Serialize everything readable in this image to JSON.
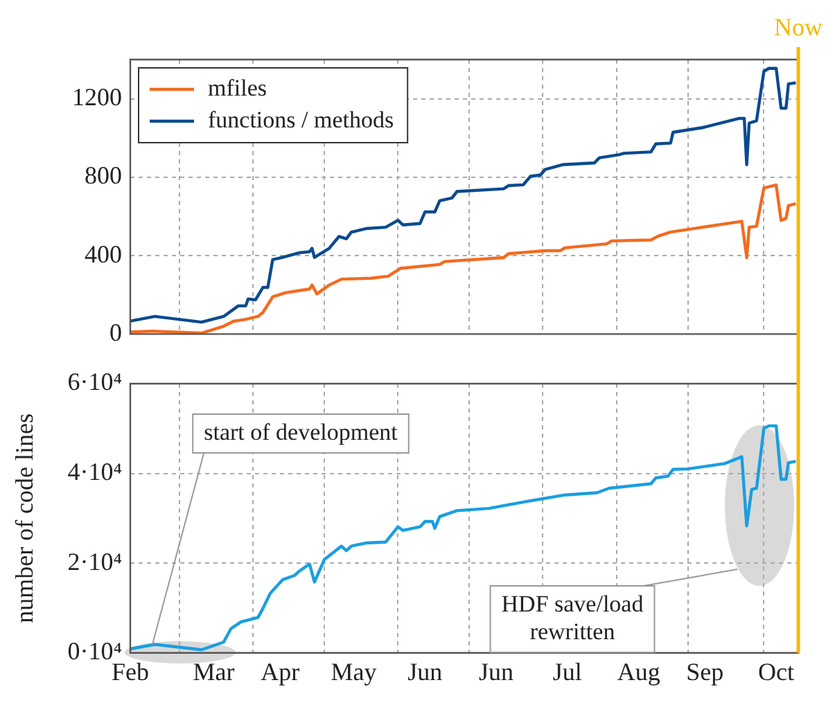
{
  "chart_data": [
    {
      "type": "line",
      "xlim": [
        "--02-01",
        "--10-31"
      ],
      "ylim": [
        0,
        1400
      ],
      "yticks": [
        0,
        400,
        800,
        1200
      ],
      "grid": true,
      "legend": "top left",
      "tick_labels": "y",
      "xticks": [
        {
          "value": "--02-01",
          "label": "Feb"
        },
        {
          "value": "--02-21",
          "label": null
        },
        {
          "value": "--03-07",
          "label": "Mar"
        },
        {
          "value": "--03-23",
          "label": null
        },
        {
          "value": "--04-03",
          "label": "Apr"
        },
        {
          "value": "--04-21",
          "label": null
        },
        {
          "value": "--05-03",
          "label": "May"
        },
        {
          "value": "--05-21",
          "label": null
        },
        {
          "value": "--06-01",
          "label": "Jun"
        },
        {
          "value": "--06-19",
          "label": null
        },
        {
          "value": "--06-30",
          "label": "Jun"
        },
        {
          "value": "--07-19",
          "label": null
        },
        {
          "value": "--07-29",
          "label": "Jul"
        },
        {
          "value": "--08-18",
          "label": null
        },
        {
          "value": "--08-27",
          "label": "Aug"
        },
        {
          "value": "--09-16",
          "label": null
        },
        {
          "value": "--09-23",
          "label": "Sep"
        },
        {
          "value": "--10-17",
          "label": null
        },
        {
          "value": "--10-22",
          "label": "Oct"
        }
      ],
      "ref_lines": [
        {
          "axis": "x",
          "value": "--10-31",
          "label": "Now",
          "color": "#f5b800"
        }
      ],
      "series": [
        {
          "name": "mfiles",
          "color": "#f26b21",
          "x": [
            "--02-01",
            "--02-10",
            "--03-02",
            "--03-11",
            "--03-15",
            "--03-20",
            "--03-25",
            "--03-27",
            "--03-31",
            "--04-05",
            "--04-15",
            "--04-16",
            "--04-18",
            "--04-23",
            "--04-28",
            "--05-10",
            "--05-17",
            "--05-22",
            "--06-07",
            "--06-09",
            "--07-03",
            "--07-05",
            "--07-20",
            "--07-26",
            "--07-28",
            "--08-14",
            "--08-16",
            "--09-01",
            "--09-04",
            "--09-09",
            "--09-22",
            "--10-08",
            "--10-10",
            "--10-11",
            "--10-14",
            "--10-17",
            "--10-22",
            "--10-24",
            "--10-26",
            "--10-27",
            "--10-30"
          ],
          "values": [
            10,
            15,
            5,
            40,
            65,
            75,
            90,
            110,
            190,
            210,
            230,
            250,
            205,
            250,
            280,
            285,
            295,
            335,
            355,
            370,
            390,
            410,
            425,
            425,
            440,
            460,
            475,
            480,
            500,
            520,
            545,
            575,
            390,
            545,
            550,
            745,
            760,
            580,
            590,
            655,
            665
          ]
        },
        {
          "name": "functions / methods",
          "color": "#0b4a8f",
          "x": [
            "--02-01",
            "--02-11",
            "--03-02",
            "--03-11",
            "--03-17",
            "--03-20",
            "--03-21",
            "--03-24",
            "--03-27",
            "--03-29",
            "--03-31",
            "--04-04",
            "--04-11",
            "--04-15",
            "--04-16",
            "--04-17",
            "--04-23",
            "--04-27",
            "--04-30",
            "--05-02",
            "--05-08",
            "--05-16",
            "--05-21",
            "--05-23",
            "--05-30",
            "--06-01",
            "--06-05",
            "--06-07",
            "--06-12",
            "--06-14",
            "--07-03",
            "--07-05",
            "--07-11",
            "--07-14",
            "--07-18",
            "--07-20",
            "--07-27",
            "--08-09",
            "--08-11",
            "--08-19",
            "--08-21",
            "--09-01",
            "--09-03",
            "--09-09",
            "--09-10",
            "--09-22",
            "--10-07",
            "--10-09",
            "--10-10",
            "--10-11",
            "--10-14",
            "--10-17",
            "--10-19",
            "--10-22",
            "--10-24",
            "--10-26",
            "--10-27",
            "--10-30"
          ],
          "values": [
            66,
            90,
            61,
            90,
            144,
            144,
            179,
            175,
            238,
            238,
            380,
            391,
            415,
            420,
            437,
            391,
            437,
            498,
            486,
            520,
            538,
            545,
            580,
            557,
            564,
            623,
            623,
            680,
            694,
            727,
            741,
            757,
            761,
            805,
            811,
            840,
            864,
            873,
            899,
            915,
            922,
            929,
            970,
            974,
            1029,
            1053,
            1100,
            1100,
            864,
            1076,
            1088,
            1340,
            1355,
            1355,
            1152,
            1152,
            1276,
            1281
          ]
        }
      ]
    },
    {
      "type": "line",
      "xlim": [
        "--02-01",
        "--10-31"
      ],
      "ylim": [
        0,
        60000
      ],
      "yticks": [
        {
          "value": 0,
          "label": "0·10⁴"
        },
        {
          "value": 20000,
          "label": "2·10⁴"
        },
        {
          "value": 40000,
          "label": "4·10⁴"
        },
        {
          "value": 60000,
          "label": "6·10⁴"
        }
      ],
      "grid": true,
      "ylabel": "number of code lines",
      "xticks": [
        {
          "value": "--02-01",
          "label": "Feb"
        },
        {
          "value": "--02-21",
          "label": null
        },
        {
          "value": "--03-07",
          "label": "Mar"
        },
        {
          "value": "--03-23",
          "label": null
        },
        {
          "value": "--04-03",
          "label": "Apr"
        },
        {
          "value": "--04-21",
          "label": null
        },
        {
          "value": "--05-03",
          "label": "May"
        },
        {
          "value": "--05-21",
          "label": null
        },
        {
          "value": "--06-01",
          "label": "Jun"
        },
        {
          "value": "--06-19",
          "label": null
        },
        {
          "value": "--06-30",
          "label": "Jun"
        },
        {
          "value": "--07-19",
          "label": null
        },
        {
          "value": "--07-29",
          "label": "Jul"
        },
        {
          "value": "--08-18",
          "label": null
        },
        {
          "value": "--08-27",
          "label": "Aug"
        },
        {
          "value": "--09-16",
          "label": null
        },
        {
          "value": "--09-23",
          "label": "Sep"
        },
        {
          "value": "--10-17",
          "label": null
        },
        {
          "value": "--10-22",
          "label": "Oct"
        }
      ],
      "ref_lines": [
        {
          "axis": "x",
          "value": "--10-31",
          "color": "#f5b800"
        }
      ],
      "annotations": [
        {
          "text": "start of development",
          "x": "--02-10",
          "y": 1900
        },
        "HDF save/load rewritten"
      ],
      "series": [
        {
          "color": "#1a9ee0",
          "x": [
            "--02-01",
            "--02-11",
            "--03-02",
            "--03-11",
            "--03-14",
            "--03-18",
            "--03-25",
            "--03-27",
            "--03-30",
            "--04-04",
            "--04-09",
            "--04-11",
            "--04-15",
            "--04-17",
            "--04-21",
            "--04-28",
            "--04-30",
            "--05-02",
            "--05-08",
            "--05-16",
            "--05-21",
            "--05-23",
            "--05-30",
            "--06-01",
            "--06-04",
            "--06-05",
            "--06-07",
            "--06-14",
            "--06-27",
            "--07-05",
            "--07-12",
            "--07-28",
            "--08-10",
            "--08-15",
            "--09-01",
            "--09-03",
            "--09-08",
            "--09-10",
            "--09-16",
            "--10-01",
            "--10-08",
            "--10-10",
            "--10-12",
            "--10-14",
            "--10-17",
            "--10-19",
            "--10-22",
            "--10-24",
            "--10-26",
            "--10-27",
            "--10-30"
          ],
          "values": [
            900,
            1900,
            700,
            2400,
            5400,
            6900,
            7900,
            9900,
            13300,
            16300,
            17300,
            18300,
            19800,
            15800,
            20800,
            23800,
            22800,
            23800,
            24500,
            24700,
            28100,
            27300,
            28100,
            29300,
            29300,
            27800,
            30400,
            31700,
            32200,
            33000,
            33700,
            35200,
            35700,
            36700,
            37700,
            39000,
            39400,
            40900,
            41000,
            42200,
            43700,
            28300,
            36400,
            36700,
            50100,
            50600,
            50600,
            38700,
            38700,
            42400,
            42700
          ]
        }
      ]
    }
  ]
}
